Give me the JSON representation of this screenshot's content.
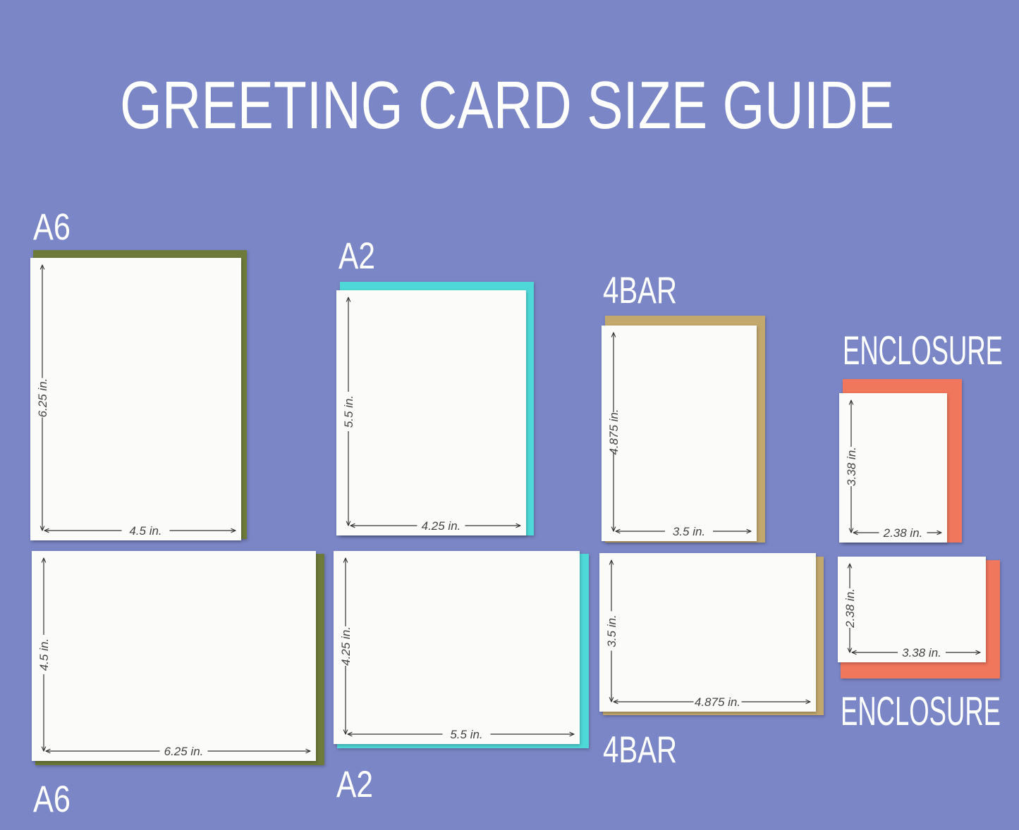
{
  "title": "GREETING CARD SIZE GUIDE",
  "colors": {
    "background": "#7b86c6",
    "card": "#fbfbf9",
    "a6_envelope": "#6e7a3a",
    "a2_envelope": "#4fd8d8",
    "4bar_envelope": "#c3a86e",
    "enclosure_envelope": "#f0765c"
  },
  "cards": [
    {
      "label": "A6",
      "orientation": "portrait",
      "height": "6.25 in.",
      "width": "4.5 in.",
      "envelope_color": "#6e7a3a"
    },
    {
      "label": "A2",
      "orientation": "portrait",
      "height": "5.5 in.",
      "width": "4.25 in.",
      "envelope_color": "#4fd8d8"
    },
    {
      "label": "4BAR",
      "orientation": "portrait",
      "height": "4.875 in.",
      "width": "3.5 in.",
      "envelope_color": "#c3a86e"
    },
    {
      "label": "ENCLOSURE",
      "orientation": "portrait",
      "height": "3.38 in.",
      "width": "2.38 in.",
      "envelope_color": "#f0765c"
    },
    {
      "label": "A6",
      "orientation": "landscape",
      "height": "4.5 in.",
      "width": "6.25 in.",
      "envelope_color": "#6e7a3a"
    },
    {
      "label": "A2",
      "orientation": "landscape",
      "height": "4.25 in.",
      "width": "5.5 in.",
      "envelope_color": "#4fd8d8"
    },
    {
      "label": "4BAR",
      "orientation": "landscape",
      "height": "3.5 in.",
      "width": "4.875 in.",
      "envelope_color": "#c3a86e"
    },
    {
      "label": "ENCLOSURE",
      "orientation": "landscape",
      "height": "2.38 in.",
      "width": "3.38 in.",
      "envelope_color": "#f0765c"
    }
  ]
}
